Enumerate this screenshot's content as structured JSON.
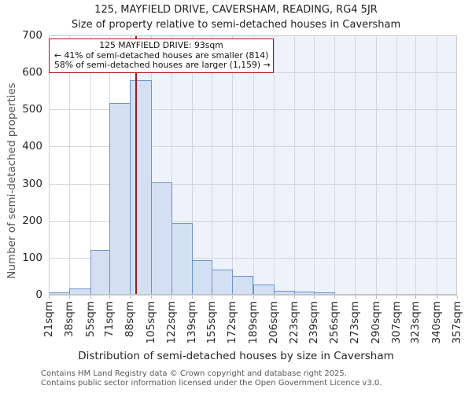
{
  "chart": {
    "title": "125, MAYFIELD DRIVE, CAVERSHAM, READING, RG4 5JR",
    "subtitle": "Size of property relative to semi-detached houses in Caversham",
    "ylabel": "Number of semi-detached properties",
    "xlabel": "Distribution of semi-detached houses by size in Caversham"
  },
  "annotation": {
    "line1": "125 MAYFIELD DRIVE: 93sqm",
    "line2": "← 41% of semi-detached houses are smaller (814)",
    "line3": "58% of semi-detached houses are larger (1,159) →"
  },
  "footer": {
    "line1": "Contains HM Land Registry data © Crown copyright and database right 2025.",
    "line2": "Contains public sector information licensed under the Open Government Licence v3.0."
  },
  "chart_data": {
    "type": "bar",
    "title": "125, MAYFIELD DRIVE, CAVERSHAM, READING, RG4 5JR",
    "subtitle": "Size of property relative to semi-detached houses in Caversham",
    "xlabel": "Distribution of semi-detached houses by size in Caversham",
    "ylabel": "Number of semi-detached properties",
    "bin_edges_sqm": [
      21,
      38,
      55,
      71,
      88,
      105,
      122,
      139,
      155,
      172,
      189,
      206,
      223,
      239,
      256,
      273,
      290,
      307,
      323,
      340,
      357
    ],
    "bin_labels": [
      "21sqm",
      "38sqm",
      "55sqm",
      "71sqm",
      "88sqm",
      "105sqm",
      "122sqm",
      "139sqm",
      "155sqm",
      "172sqm",
      "189sqm",
      "206sqm",
      "223sqm",
      "239sqm",
      "256sqm",
      "273sqm",
      "290sqm",
      "307sqm",
      "323sqm",
      "340sqm",
      "357sqm"
    ],
    "values": [
      7,
      16,
      121,
      517,
      580,
      303,
      194,
      94,
      68,
      50,
      27,
      10,
      8,
      6,
      0,
      0,
      0,
      0,
      0,
      0
    ],
    "marker": {
      "label": "125 MAYFIELD DRIVE",
      "value_sqm": 93,
      "smaller_count": 814,
      "larger_count": 1159,
      "smaller_pct": 41,
      "larger_pct": 58
    },
    "ylim": [
      0,
      700
    ],
    "yticks": [
      0,
      100,
      200,
      300,
      400,
      500,
      600,
      700
    ],
    "grid": true,
    "legend": false,
    "shaded_region": "from marker line to right edge",
    "colors": {
      "bar_fill": "#d3e0f4",
      "bar_border": "#6a94cb",
      "marker_line": "#b11116",
      "shaded_background": "#eef2fa",
      "gridline": "#d3d6dd"
    }
  }
}
